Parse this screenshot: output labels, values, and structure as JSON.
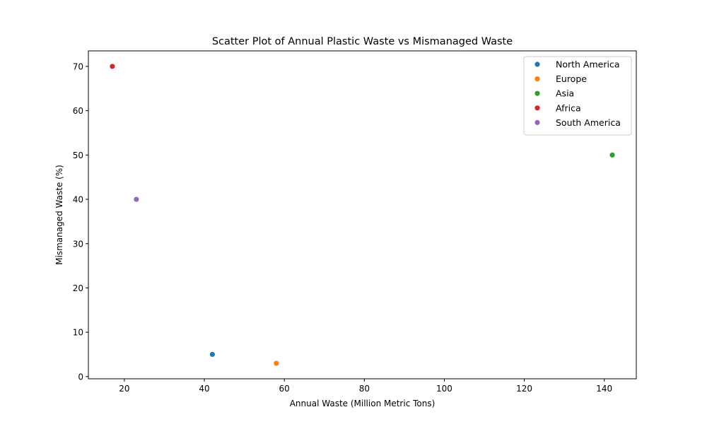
{
  "chart_data": {
    "type": "scatter",
    "title": "Scatter Plot of Annual Plastic Waste vs Mismanaged Waste",
    "xlabel": "Annual Waste (Million Metric Tons)",
    "ylabel": "Mismanaged Waste (%)",
    "xlim": [
      11,
      148
    ],
    "ylim": [
      -0.5,
      73.5
    ],
    "xticks": [
      20,
      40,
      60,
      80,
      100,
      120,
      140
    ],
    "yticks": [
      0,
      10,
      20,
      30,
      40,
      50,
      60,
      70
    ],
    "grid": false,
    "legend_position": "top-right",
    "series": [
      {
        "name": "North America",
        "color": "#1f77b4",
        "points": [
          {
            "x": 42,
            "y": 5
          }
        ]
      },
      {
        "name": "Europe",
        "color": "#ff7f0e",
        "points": [
          {
            "x": 58,
            "y": 3
          }
        ]
      },
      {
        "name": "Asia",
        "color": "#2ca02c",
        "points": [
          {
            "x": 142,
            "y": 50
          }
        ]
      },
      {
        "name": "Africa",
        "color": "#d62728",
        "points": [
          {
            "x": 17,
            "y": 70
          }
        ]
      },
      {
        "name": "South America",
        "color": "#9467bd",
        "points": [
          {
            "x": 23,
            "y": 40
          }
        ]
      }
    ]
  }
}
